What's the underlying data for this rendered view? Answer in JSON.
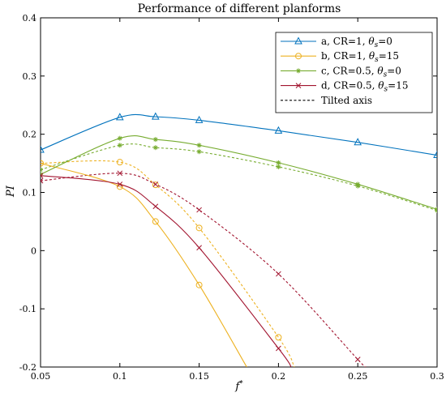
{
  "chart_data": {
    "type": "line",
    "title": "Performance of different planforms",
    "xlabel": "f",
    "xlabel_superscript": "*",
    "ylabel": "PI",
    "xlim": [
      0.05,
      0.3
    ],
    "ylim": [
      -0.2,
      0.4
    ],
    "x_ticks": [
      0.05,
      0.1,
      0.15,
      0.2,
      0.25,
      0.3
    ],
    "x_tick_labels": [
      "0.05",
      "0.1",
      "0.15",
      "0.2",
      "0.25",
      "0.3"
    ],
    "y_ticks": [
      -0.2,
      -0.1,
      0,
      0.1,
      0.2,
      0.3,
      0.4
    ],
    "y_tick_labels": [
      "-0.2",
      "-0.1",
      "0",
      "0.1",
      "0.2",
      "0.3",
      "0.4"
    ],
    "grid": false,
    "legend_position": "top-right",
    "series": [
      {
        "name": "a",
        "legend_prefix": "a, CR=1, ",
        "legend_symbol": "θ",
        "legend_subscript": "s",
        "legend_suffix": "=0",
        "color": "#0072BD",
        "marker": "triangle",
        "style": "solid",
        "x": [
          0.05,
          0.1,
          0.1225,
          0.15,
          0.2,
          0.25,
          0.3
        ],
        "y": [
          0.173,
          0.229,
          0.23,
          0.224,
          0.206,
          0.186,
          0.164
        ]
      },
      {
        "name": "b",
        "legend_prefix": "b, CR=1, ",
        "legend_symbol": "θ",
        "legend_subscript": "s",
        "legend_suffix": "=15",
        "color": "#EDB120",
        "marker": "circle",
        "style": "solid",
        "x": [
          0.05,
          0.1,
          0.1225,
          0.15,
          0.18
        ],
        "y": [
          0.15,
          0.11,
          0.05,
          -0.059,
          -0.2
        ]
      },
      {
        "name": "c",
        "legend_prefix": "c, CR=0.5, ",
        "legend_symbol": "θ",
        "legend_subscript": "s",
        "legend_suffix": "=0",
        "color": "#77AC30",
        "marker": "asterisk",
        "style": "solid",
        "x": [
          0.05,
          0.1,
          0.1225,
          0.15,
          0.2,
          0.25,
          0.3
        ],
        "y": [
          0.131,
          0.193,
          0.191,
          0.181,
          0.151,
          0.114,
          0.071
        ]
      },
      {
        "name": "d",
        "legend_prefix": "d, CR=0.5, ",
        "legend_symbol": "θ",
        "legend_subscript": "s",
        "legend_suffix": "=15",
        "color": "#A2142F",
        "marker": "x",
        "style": "solid",
        "x": [
          0.05,
          0.1,
          0.1225,
          0.15,
          0.2,
          0.208
        ],
        "y": [
          0.129,
          0.114,
          0.076,
          0.005,
          -0.168,
          -0.2
        ]
      },
      {
        "name": "b tilted axis",
        "color": "#EDB120",
        "marker": "circle",
        "style": "dashed",
        "x": [
          0.05,
          0.1,
          0.1225,
          0.15,
          0.2,
          0.21
        ],
        "y": [
          0.15,
          0.152,
          0.113,
          0.039,
          -0.149,
          -0.2
        ]
      },
      {
        "name": "c tilted axis",
        "color": "#77AC30",
        "marker": "asterisk",
        "style": "dashed",
        "x": [
          0.05,
          0.1,
          0.1225,
          0.15,
          0.2,
          0.25,
          0.3
        ],
        "y": [
          0.139,
          0.181,
          0.177,
          0.17,
          0.144,
          0.111,
          0.069
        ]
      },
      {
        "name": "d tilted axis",
        "color": "#A2142F",
        "marker": "x",
        "style": "dashed",
        "x": [
          0.05,
          0.1,
          0.1225,
          0.15,
          0.2,
          0.25,
          0.255
        ],
        "y": [
          0.12,
          0.133,
          0.114,
          0.07,
          -0.04,
          -0.187,
          -0.2
        ]
      }
    ],
    "legend_entries": [
      {
        "series": "a"
      },
      {
        "series": "b"
      },
      {
        "series": "c"
      },
      {
        "series": "d"
      },
      {
        "label": "Tilted axis",
        "style": "dashed",
        "color": "#000000"
      }
    ]
  }
}
